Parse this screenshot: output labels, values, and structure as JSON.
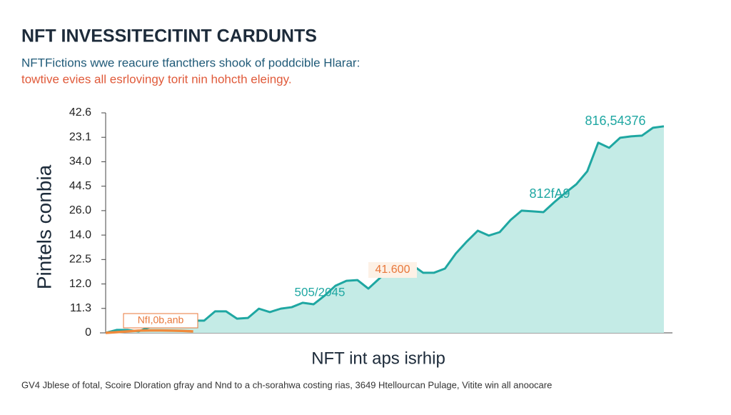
{
  "chart_data": {
    "type": "area",
    "title": "NFT INVESSITECITINT CARDUNTS",
    "subtitle": "NFTFictions wwe reacure tfancthers shook of poddcible Hlarar:",
    "subtitle_2": "towtive evies all esrlovingy torit nin hohcth eleingy.",
    "y_label": "Pintels conbia",
    "x_label": "NFT int aps isrhip",
    "footer": "GV4 Jblese of fotal, Scoire Dloration gfray and Nnd to a ch-sorahwa costing rias, 3649 Htellourcan Pulage, Vitite win all anoocare",
    "ylim": [
      0,
      9
    ],
    "yticks": [
      {
        "value": 0,
        "label": "0"
      },
      {
        "value": 1,
        "label": "11.3"
      },
      {
        "value": 2,
        "label": "12.0"
      },
      {
        "value": 3,
        "label": "22.5"
      },
      {
        "value": 4,
        "label": "14.0"
      },
      {
        "value": 5,
        "label": "26.0"
      },
      {
        "value": 6,
        "label": "44.5"
      },
      {
        "value": 7,
        "label": "34.0"
      },
      {
        "value": 8,
        "label": "23.1"
      },
      {
        "value": 9,
        "label": "42.6"
      }
    ],
    "categories": [
      null,
      null,
      null,
      null,
      null,
      null,
      null,
      null,
      null,
      null,
      null,
      null,
      null,
      null,
      null,
      null,
      null,
      null,
      null,
      null,
      null,
      null,
      null,
      null,
      null,
      null,
      null,
      null,
      null,
      null,
      null,
      null,
      null,
      null,
      null,
      null,
      null,
      null,
      null,
      null,
      null,
      null,
      null,
      null,
      null,
      null,
      null,
      null,
      null,
      null,
      null,
      null
    ],
    "series": [
      {
        "color": "#1fa7a2",
        "values": [
          0,
          0.12,
          0.12,
          0.06,
          0.23,
          0.32,
          0.56,
          0.41,
          0.5,
          0.5,
          0.88,
          0.88,
          0.58,
          0.61,
          0.99,
          0.85,
          0.99,
          1.05,
          1.23,
          1.17,
          1.52,
          1.93,
          2.13,
          2.16,
          1.81,
          2.22,
          2.66,
          2.81,
          2.78,
          2.46,
          2.46,
          2.63,
          3.25,
          3.74,
          4.18,
          3.98,
          4.12,
          4.62,
          5.0,
          4.97,
          4.94,
          5.35,
          5.73,
          6.08,
          6.61,
          7.78,
          7.57,
          7.98,
          8.04,
          8.07,
          8.39,
          8.45
        ]
      },
      {
        "color": "#ef8a3c",
        "values": [
          0,
          0.03,
          0.06,
          0.09,
          0.1,
          0.1,
          0.09,
          0.08,
          0.06,
          null,
          null,
          null,
          null,
          null,
          null,
          null,
          null,
          null,
          null,
          null,
          null,
          null,
          null,
          null,
          null,
          null,
          null,
          null,
          null,
          null,
          null,
          null,
          null,
          null,
          null,
          null,
          null,
          null,
          null,
          null,
          null,
          null,
          null,
          null,
          null,
          null,
          null,
          null,
          null,
          null,
          null,
          null
        ]
      }
    ],
    "annotations": [
      {
        "text": "816,54376",
        "color": "#1fa7a2"
      },
      {
        "text": "812fA9",
        "color": "#1fa7a2"
      },
      {
        "text": "41.600",
        "color": "#e8773a"
      },
      {
        "text": "505/2045",
        "color": "#1fa7a2"
      },
      {
        "text": "NfI,0b,anb",
        "color": "#e8773a"
      }
    ]
  }
}
